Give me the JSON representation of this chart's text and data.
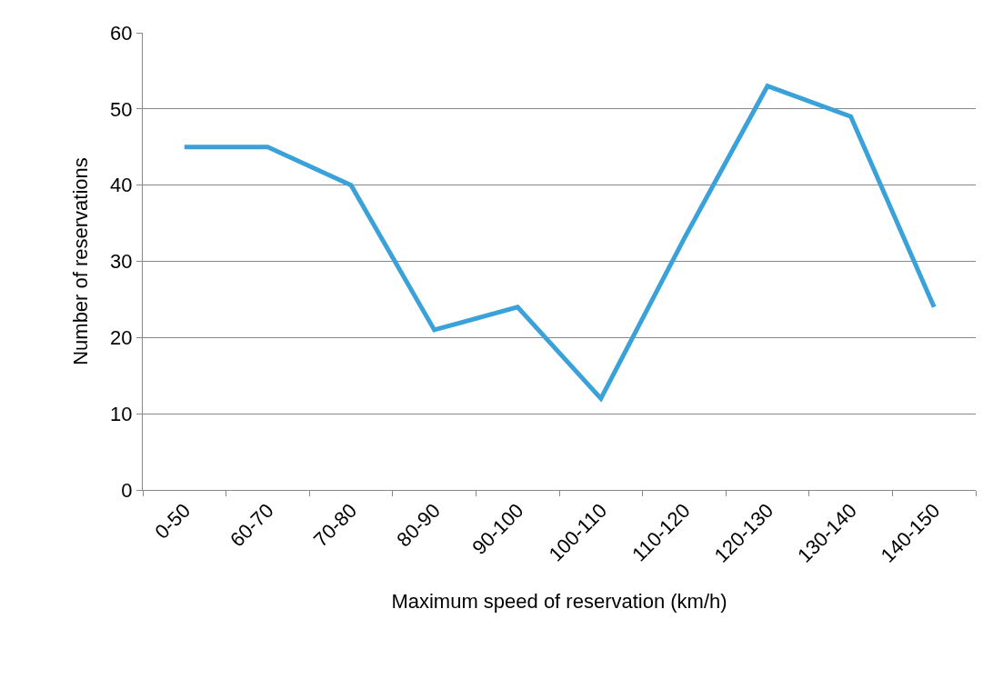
{
  "chart_data": {
    "type": "line",
    "xlabel": "Maximum speed of reservation (km/h)",
    "ylabel": "Number of reservations",
    "categories": [
      "0-50",
      "60-70",
      "70-80",
      "80-90",
      "90-100",
      "100-110",
      "110-120",
      "120-130",
      "130-140",
      "140-150"
    ],
    "series": [
      {
        "color": "#3aa2d8",
        "values": [
          45,
          45,
          40,
          21,
          24,
          12,
          33,
          53,
          49,
          24
        ]
      }
    ],
    "ylim": [
      0,
      60
    ],
    "yticks": [
      0,
      10,
      20,
      30,
      40,
      50,
      60
    ],
    "grid": "y",
    "marker": "none",
    "line_style": "solid"
  }
}
